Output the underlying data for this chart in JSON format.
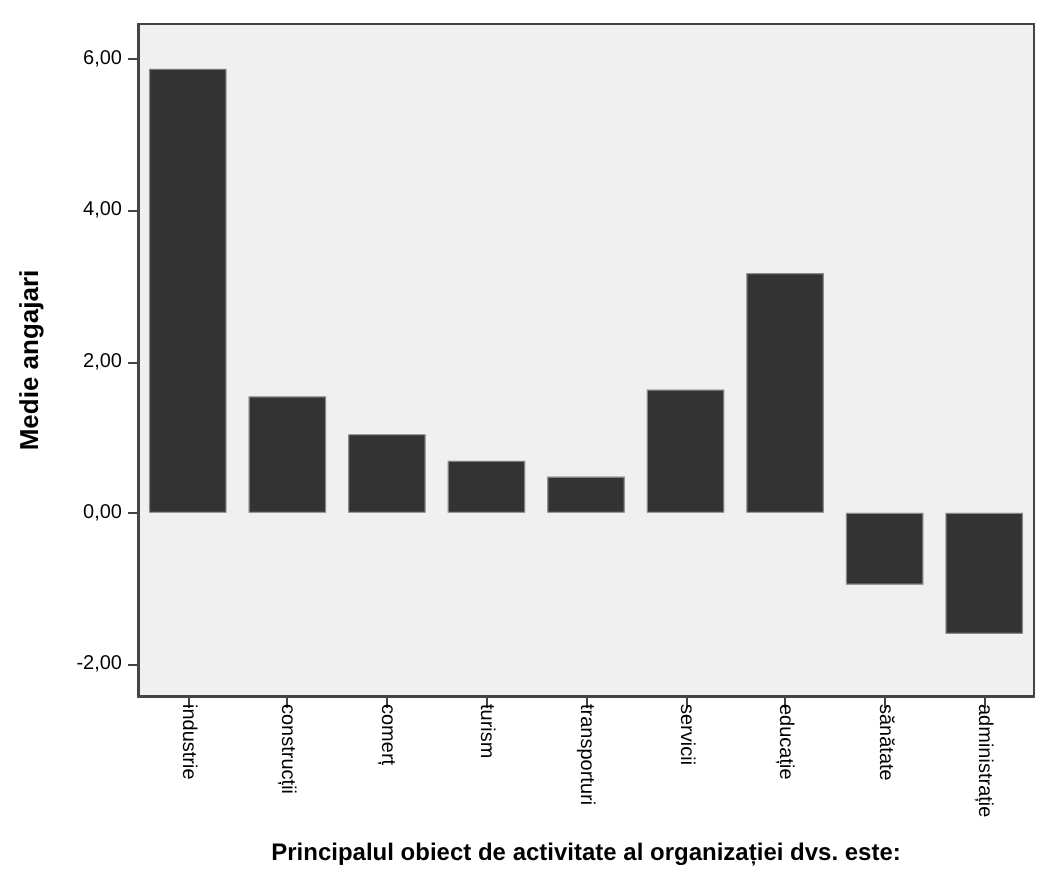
{
  "chart_data": {
    "type": "bar",
    "xlabel": "Principalul obiect de activitate al organizației dvs. este:",
    "ylabel": "Medie angajari",
    "categories": [
      "industrie",
      "construcții",
      "comerț",
      "turism",
      "transporturi",
      "servicii",
      "educație",
      "sănătate",
      "administrație"
    ],
    "values": [
      5.87,
      1.54,
      1.04,
      0.69,
      0.48,
      1.63,
      3.17,
      -0.95,
      -1.6
    ],
    "color": "#333333",
    "ylim": [
      -2.42,
      6.46
    ],
    "yticks": [
      {
        "value": -2,
        "label": "-2,00"
      },
      {
        "value": 0,
        "label": "0,00"
      },
      {
        "value": 2,
        "label": "2,00"
      },
      {
        "value": 4,
        "label": "4,00"
      },
      {
        "value": 6,
        "label": "6,00"
      }
    ],
    "grid": false
  }
}
